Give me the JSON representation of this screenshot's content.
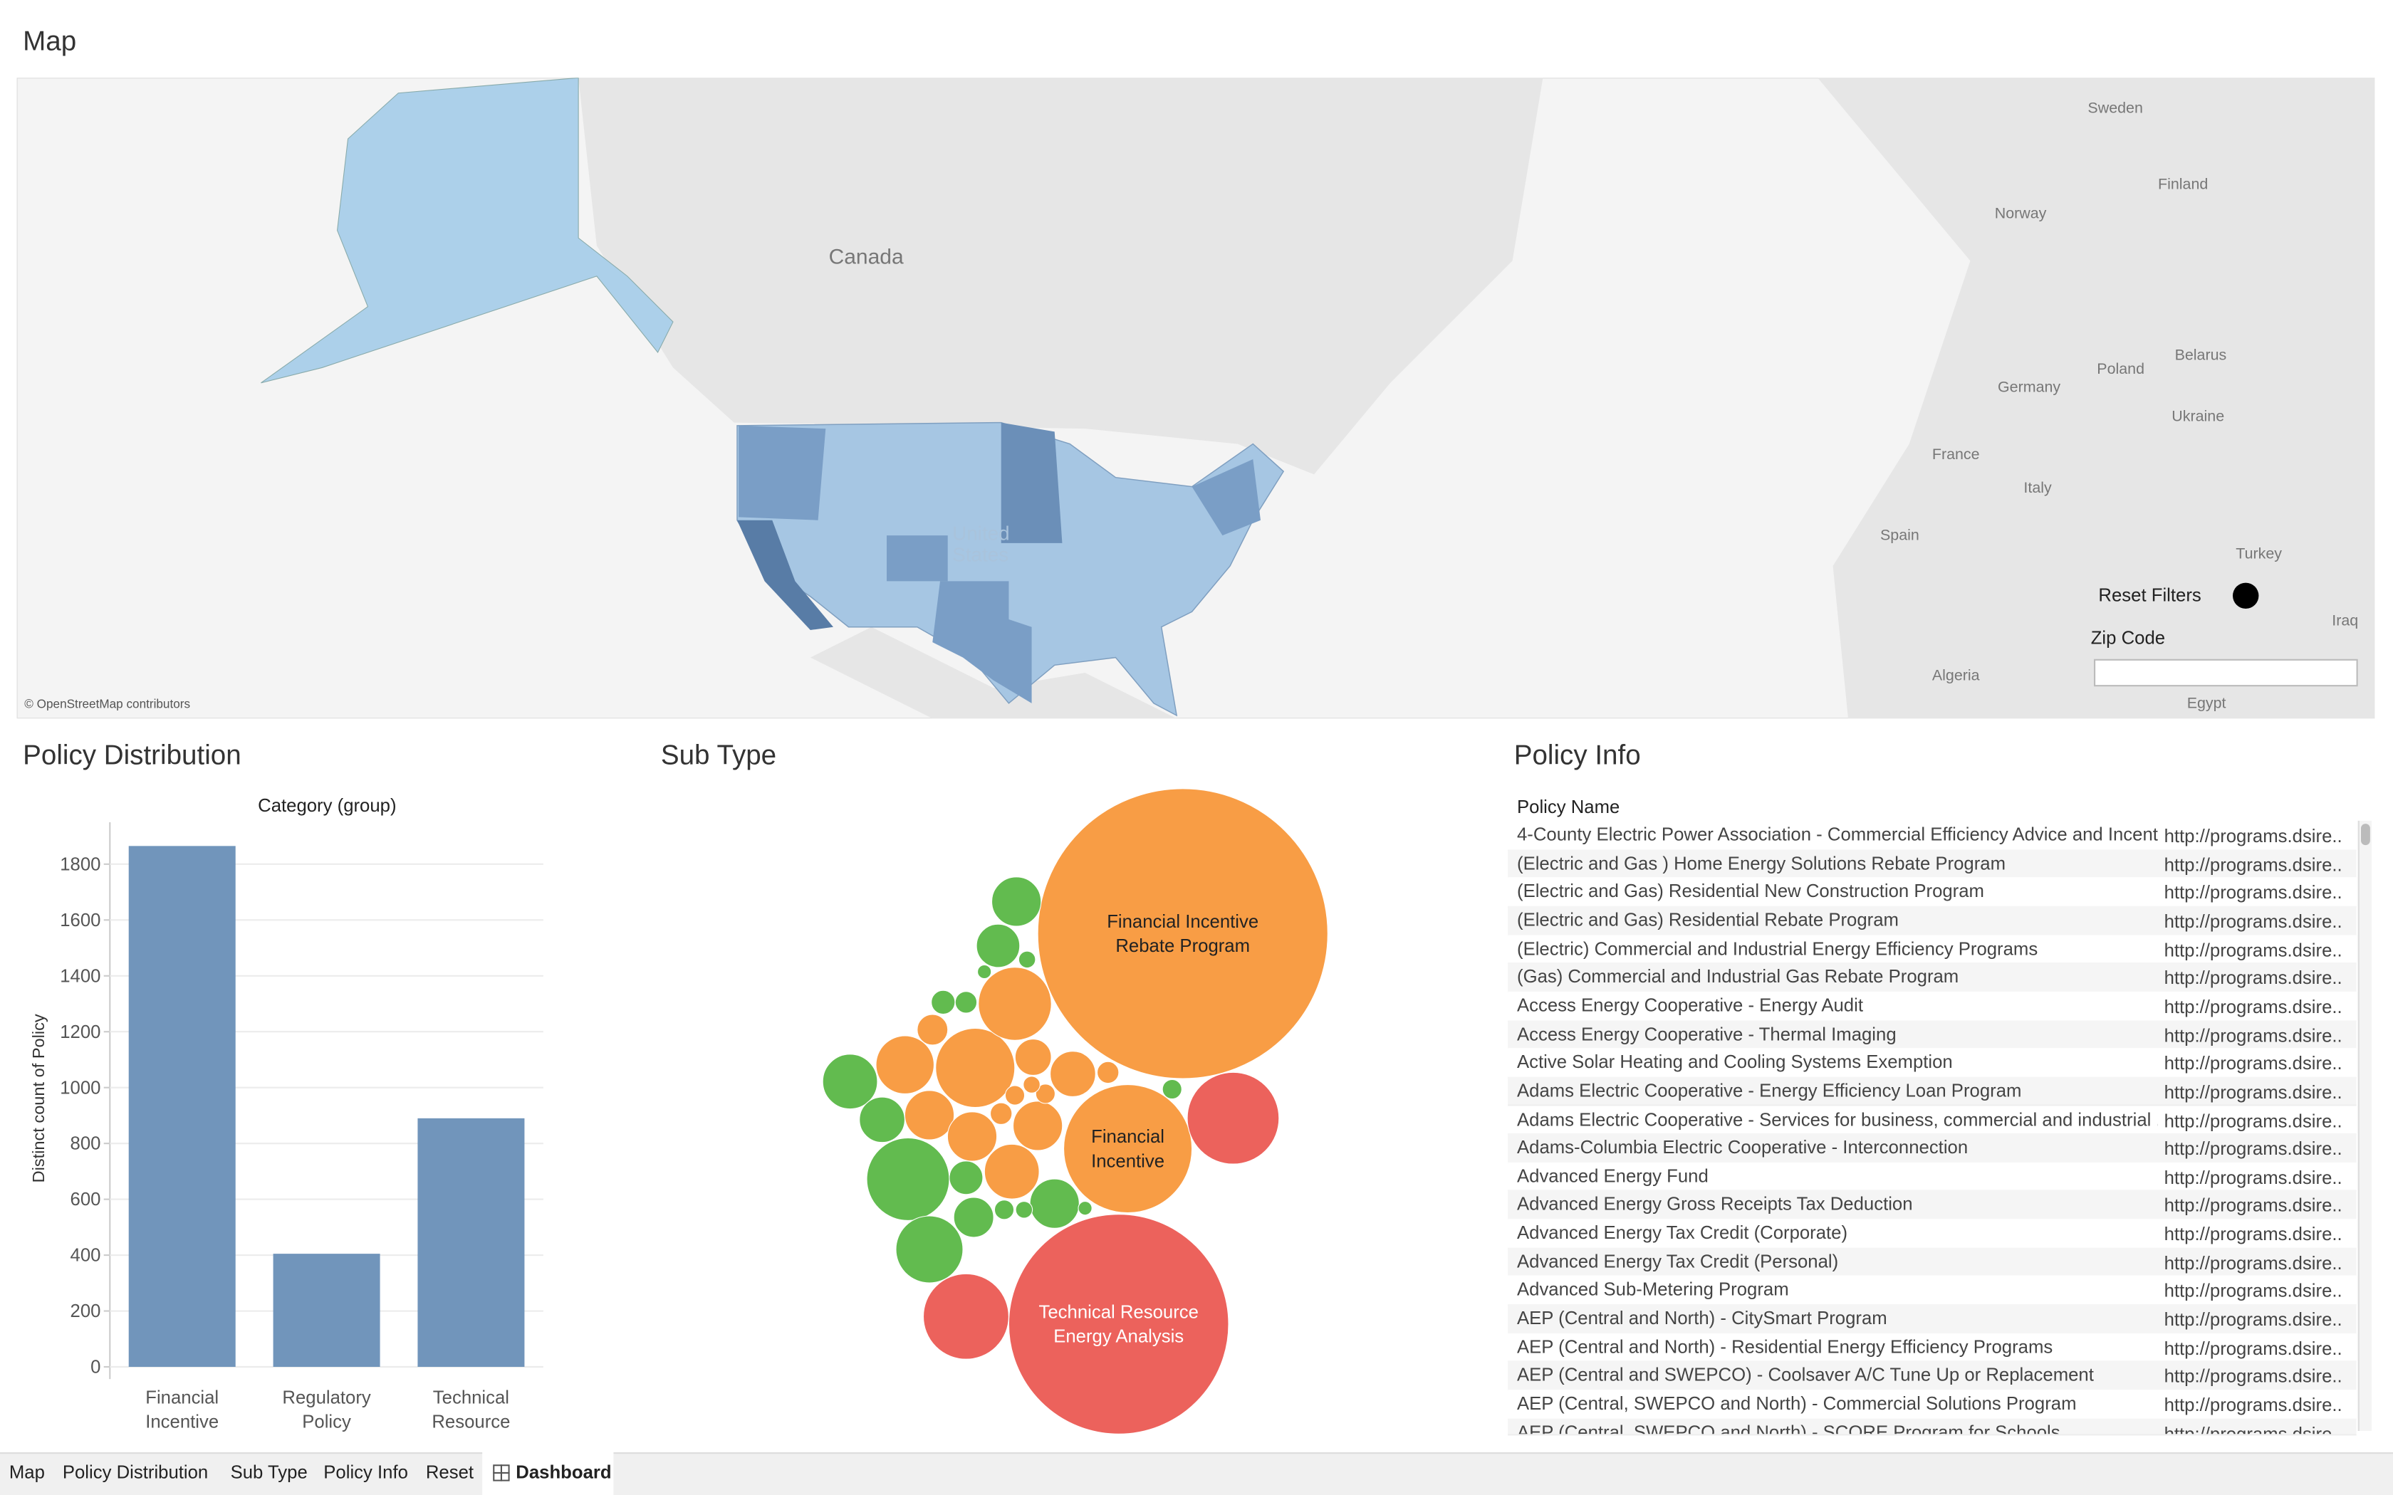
{
  "map": {
    "title": "Map",
    "places": [
      "Canada",
      "United States",
      "Sweden",
      "Finland",
      "Norway",
      "Belarus",
      "Poland",
      "Germany",
      "Ukraine",
      "France",
      "Italy",
      "Spain",
      "Turkey",
      "Algeria",
      "Egypt",
      "Iraq"
    ],
    "attribution": "© OpenStreetMap contributors",
    "reset_filters": "Reset Filters",
    "zip_code": "Zip Code"
  },
  "chart_data": [
    {
      "type": "bar",
      "title": "Policy Distribution",
      "subtitle": "Category (group)",
      "y_label": "Distinct count of Policy",
      "categories": [
        "Financial Incentive",
        "Regulatory Policy",
        "Technical Resource"
      ],
      "values": [
        1865,
        405,
        890
      ],
      "color": "#7195bb",
      "ylim": [
        0,
        1950
      ],
      "yticks": [
        0,
        200,
        400,
        600,
        800,
        1000,
        1200,
        1400,
        1600,
        1800
      ],
      "grid": true
    },
    {
      "type": "bubble",
      "title": "Sub Type",
      "bubbles": [
        {
          "color": "#f89d45",
          "value": 900,
          "label": "Financial Incentive Rebate Program"
        },
        {
          "color": "#ec625c",
          "value": 517,
          "label": "Technical Resource Energy Analysis"
        },
        {
          "color": "#f89d45",
          "value": 176,
          "label": "Financial Incentive"
        },
        {
          "color": "#ec625c",
          "value": 90
        },
        {
          "color": "#ec625c",
          "value": 78
        },
        {
          "color": "#62bb4f",
          "value": 73
        },
        {
          "color": "#62bb4f",
          "value": 48
        },
        {
          "color": "#f89d45",
          "value": 67
        },
        {
          "color": "#f89d45",
          "value": 57
        },
        {
          "color": "#62bb4f",
          "value": 32
        },
        {
          "color": "#62bb4f",
          "value": 22
        },
        {
          "color": "#f89d45",
          "value": 36
        },
        {
          "color": "#f89d45",
          "value": 26
        },
        {
          "color": "#f89d45",
          "value": 26
        },
        {
          "color": "#f89d45",
          "value": 32
        },
        {
          "color": "#f89d45",
          "value": 26
        },
        {
          "color": "#f89d45",
          "value": 22
        },
        {
          "color": "#f89d45",
          "value": 14
        },
        {
          "color": "#62bb4f",
          "value": 26
        },
        {
          "color": "#62bb4f",
          "value": 26
        },
        {
          "color": "#62bb4f",
          "value": 20
        },
        {
          "color": "#62bb4f",
          "value": 17
        },
        {
          "color": "#62bb4f",
          "value": 12
        },
        {
          "color": "#f89d45",
          "value": 10
        },
        {
          "color": "#62bb4f",
          "value": 6
        },
        {
          "color": "#62bb4f",
          "value": 5
        },
        {
          "color": "#f89d45",
          "value": 5
        },
        {
          "color": "#62bb4f",
          "value": 4
        },
        {
          "color": "#f89d45",
          "value": 5
        },
        {
          "color": "#f89d45",
          "value": 4
        },
        {
          "color": "#62bb4f",
          "value": 4
        },
        {
          "color": "#62bb4f",
          "value": 3
        },
        {
          "color": "#62bb4f",
          "value": 3
        },
        {
          "color": "#62bb4f",
          "value": 2
        },
        {
          "color": "#f89d45",
          "value": 4
        },
        {
          "color": "#62bb4f",
          "value": 2
        },
        {
          "color": "#f89d45",
          "value": 3
        }
      ]
    }
  ],
  "policy_info": {
    "title": "Policy Info",
    "header": "Policy Name",
    "rows": [
      [
        "4-County Electric Power Association - Commercial Efficiency Advice and Incent..",
        "http://programs.dsire.."
      ],
      [
        "(Electric and Gas ) Home Energy Solutions Rebate Program",
        "http://programs.dsire.."
      ],
      [
        "(Electric and Gas) Residential New Construction Program",
        "http://programs.dsire.."
      ],
      [
        "(Electric and Gas) Residential Rebate Program",
        "http://programs.dsire.."
      ],
      [
        "(Electric) Commercial and Industrial Energy Efficiency Programs",
        "http://programs.dsire.."
      ],
      [
        "(Gas) Commercial and Industrial Gas Rebate Program",
        "http://programs.dsire.."
      ],
      [
        "Access Energy Cooperative - Energy Audit",
        "http://programs.dsire.."
      ],
      [
        "Access Energy Cooperative - Thermal Imaging",
        "http://programs.dsire.."
      ],
      [
        "Active Solar Heating and Cooling Systems Exemption",
        "http://programs.dsire.."
      ],
      [
        "Adams Electric Cooperative - Energy Efficiency Loan Program",
        "http://programs.dsire.."
      ],
      [
        "Adams Electric Cooperative - Services for business, commercial and industrial ..",
        "http://programs.dsire.."
      ],
      [
        "Adams-Columbia Electric Cooperative - Interconnection",
        "http://programs.dsire.."
      ],
      [
        "Advanced Energy Fund",
        "http://programs.dsire.."
      ],
      [
        "Advanced Energy Gross Receipts Tax Deduction",
        "http://programs.dsire.."
      ],
      [
        "Advanced Energy Tax Credit (Corporate)",
        "http://programs.dsire.."
      ],
      [
        "Advanced Energy Tax Credit (Personal)",
        "http://programs.dsire.."
      ],
      [
        "Advanced Sub-Metering Program",
        "http://programs.dsire.."
      ],
      [
        "AEP (Central and North) - CitySmart Program",
        "http://programs.dsire.."
      ],
      [
        "AEP (Central and North) - Residential Energy Efficiency Programs",
        "http://programs.dsire.."
      ],
      [
        "AEP (Central and SWEPCO) - Coolsaver A/C Tune Up or Replacement",
        "http://programs.dsire.."
      ],
      [
        "AEP (Central, SWEPCO and North) - Commercial Solutions Program",
        "http://programs.dsire.."
      ],
      [
        "AEP (Central, SWEPCO and North) - SCORE Program for Schools",
        "http://programs.dsire.."
      ]
    ]
  },
  "tabs": [
    "Map",
    "Policy Distribution",
    "Sub Type",
    "Policy Info",
    "Reset",
    "Dashboard"
  ]
}
